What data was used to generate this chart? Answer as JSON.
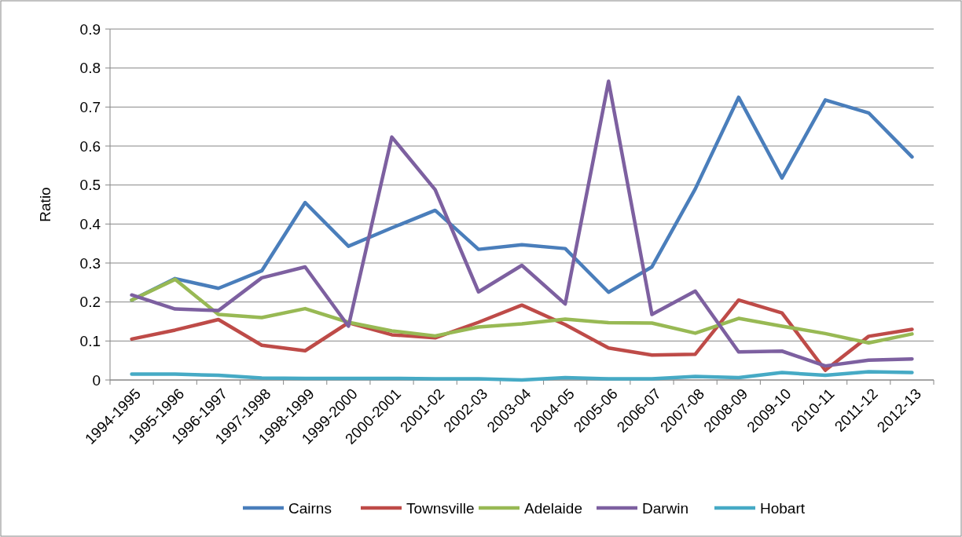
{
  "chart_data": {
    "type": "line",
    "ylabel": "Ratio",
    "categories": [
      "1994-1995",
      "1995-1996",
      "1996-1997",
      "1997-1998",
      "1998-1999",
      "1999-2000",
      "2000-2001",
      "2001-02",
      "2002-03",
      "2003-04",
      "2004-05",
      "2005-06",
      "2006-07",
      "2007-08",
      "2008-09",
      "2009-10",
      "2010-11",
      "2011-12",
      "2012-13"
    ],
    "series": [
      {
        "name": "Cairns",
        "color": "#4a7ebb",
        "values": [
          0.205,
          0.26,
          0.235,
          0.28,
          0.455,
          0.343,
          0.39,
          0.435,
          0.335,
          0.347,
          0.337,
          0.225,
          0.29,
          0.49,
          0.725,
          0.518,
          0.718,
          0.685,
          0.572
        ]
      },
      {
        "name": "Townsville",
        "color": "#be4b48",
        "values": [
          0.105,
          0.128,
          0.155,
          0.089,
          0.075,
          0.147,
          0.116,
          0.108,
          0.148,
          0.192,
          0.142,
          0.082,
          0.064,
          0.066,
          0.205,
          0.172,
          0.025,
          0.112,
          0.13
        ]
      },
      {
        "name": "Adelaide",
        "color": "#98b954",
        "values": [
          0.205,
          0.258,
          0.168,
          0.16,
          0.183,
          0.148,
          0.126,
          0.113,
          0.136,
          0.144,
          0.156,
          0.147,
          0.146,
          0.12,
          0.158,
          0.138,
          0.119,
          0.095,
          0.118
        ]
      },
      {
        "name": "Darwin",
        "color": "#7d60a0",
        "values": [
          0.218,
          0.182,
          0.178,
          0.262,
          0.29,
          0.138,
          0.623,
          0.488,
          0.226,
          0.294,
          0.195,
          0.766,
          0.168,
          0.228,
          0.072,
          0.074,
          0.036,
          0.051,
          0.054
        ]
      },
      {
        "name": "Hobart",
        "color": "#46aac5",
        "values": [
          0.015,
          0.015,
          0.012,
          0.005,
          0.004,
          0.004,
          0.004,
          0.003,
          0.003,
          0.0,
          0.006,
          0.003,
          0.003,
          0.009,
          0.006,
          0.019,
          0.012,
          0.021,
          0.019
        ]
      }
    ],
    "ylim": [
      0,
      0.9
    ],
    "yticks": [
      0,
      0.1,
      0.2,
      0.3,
      0.4,
      0.5,
      0.6,
      0.7,
      0.8,
      0.9
    ],
    "grid": "y",
    "legend": "bottom",
    "marker": "none",
    "line_style": "solid"
  }
}
